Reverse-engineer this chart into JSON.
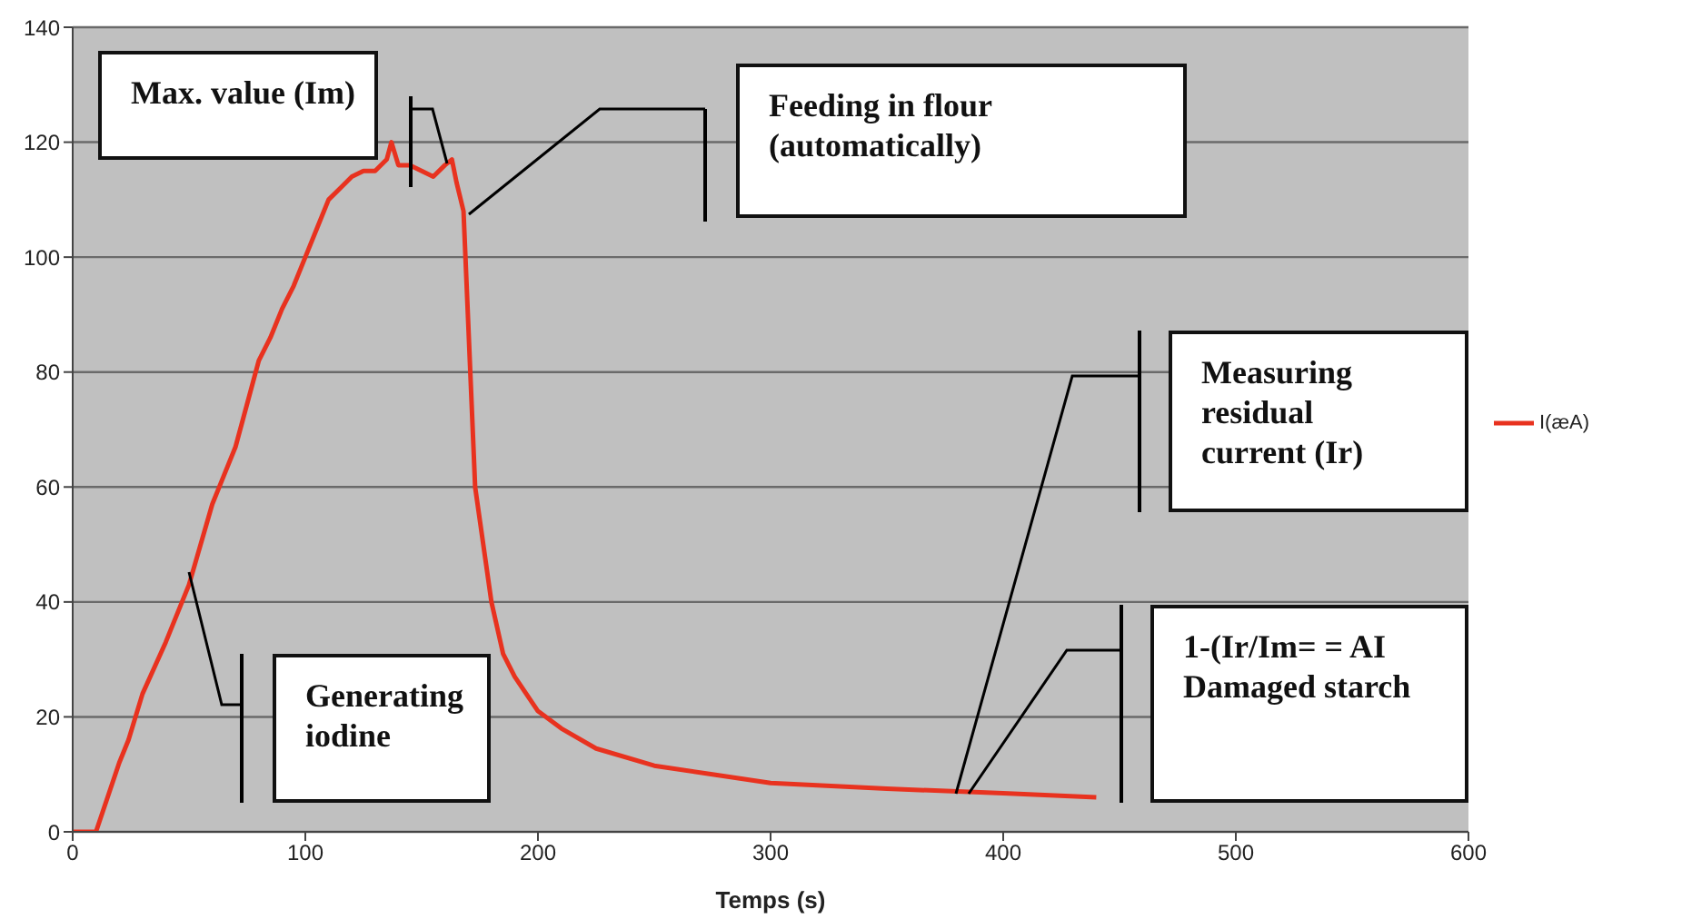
{
  "chart_data": {
    "type": "line",
    "xlabel": "Temps (s)",
    "x": [
      0,
      5,
      10,
      20,
      24,
      30,
      40,
      50,
      60,
      65,
      70,
      80,
      85,
      90,
      95,
      100,
      105,
      110,
      115,
      120,
      125,
      130,
      135,
      137,
      140,
      145,
      150,
      155,
      160,
      163,
      165,
      168,
      173,
      180,
      185,
      190,
      195,
      200,
      210,
      225,
      250,
      275,
      300,
      350,
      400,
      440
    ],
    "series": [
      {
        "name": "I(æA)",
        "color": "#e8321f",
        "values": [
          0,
          0,
          0,
          12,
          16,
          24,
          33,
          43,
          57,
          62,
          67,
          82,
          86,
          91,
          95,
          100,
          105,
          110,
          112,
          114,
          115,
          115,
          117,
          120,
          116,
          116,
          115,
          114,
          116,
          117,
          113,
          108,
          60,
          40,
          31,
          27,
          24,
          21,
          18,
          14.5,
          11.5,
          10,
          8.5,
          7.5,
          6.7,
          6
        ]
      }
    ],
    "xlim": [
      0,
      600
    ],
    "xticks": [
      0,
      100,
      200,
      300,
      400,
      500,
      600
    ],
    "ylim": [
      0,
      140
    ],
    "yticks": [
      0,
      20,
      40,
      60,
      80,
      100,
      120,
      140
    ],
    "grid": "y",
    "legend": "right",
    "marker": "none",
    "line_style": "solid",
    "annotations": [
      "Max. value (Im)",
      "Feeding in flour (automatically)",
      "Measuring residual current (Ir)",
      "Generating iodine",
      "1-(Ir/Im= = AI Damaged starch"
    ]
  }
}
